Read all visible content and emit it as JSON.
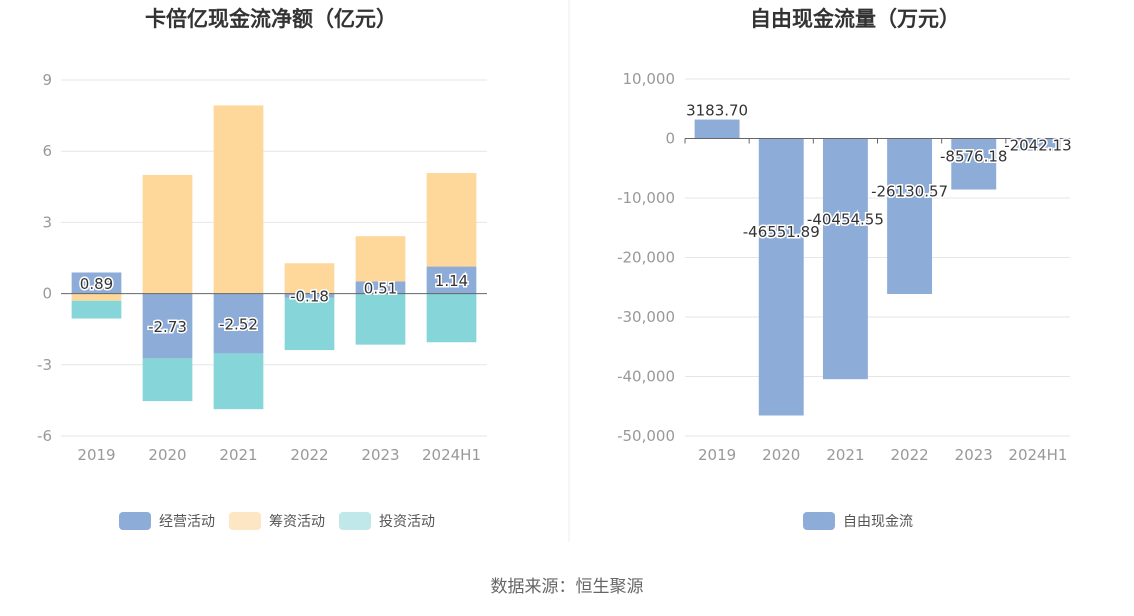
{
  "source_text": "数据来源：恒生聚源",
  "chart_data": [
    {
      "type": "bar",
      "stacked": true,
      "title": "卡倍亿现金流净额（亿元）",
      "categories": [
        "2019",
        "2020",
        "2021",
        "2022",
        "2023",
        "2024H1"
      ],
      "ylim": [
        -6,
        9
      ],
      "yticks": [
        9,
        6,
        3,
        0,
        -3,
        -6
      ],
      "ytick_labels": [
        "9",
        "6",
        "3",
        "0",
        "-3",
        "-6"
      ],
      "series": [
        {
          "name": "经营活动",
          "color": "#8eacd8",
          "values": [
            0.89,
            -2.73,
            -2.52,
            -0.18,
            0.51,
            1.14
          ],
          "labels": [
            "0.89",
            "-2.73",
            "-2.52",
            "-0.18",
            "0.51",
            "1.14"
          ]
        },
        {
          "name": "筹资活动",
          "color": "#fed89b",
          "values": [
            -0.3,
            5.0,
            7.93,
            1.28,
            1.91,
            3.94
          ]
        },
        {
          "name": "投资活动",
          "color": "#85d5d9",
          "values": [
            -0.75,
            -1.8,
            -2.35,
            -2.2,
            -2.15,
            -2.05
          ]
        }
      ],
      "legend": [
        {
          "name": "经营活动",
          "color": "#8eacd8"
        },
        {
          "name": "筹资活动",
          "color": "#fde6c4"
        },
        {
          "name": "投资活动",
          "color": "#c0e8ea"
        }
      ]
    },
    {
      "type": "bar",
      "title": "自由现金流量（万元）",
      "categories": [
        "2019",
        "2020",
        "2021",
        "2022",
        "2023",
        "2024H1"
      ],
      "ylim": [
        -50000,
        10000
      ],
      "yticks": [
        10000,
        0,
        -10000,
        -20000,
        -30000,
        -40000,
        -50000
      ],
      "ytick_labels": [
        "10,000",
        "0",
        "-10,000",
        "-20,000",
        "-30,000",
        "-40,000",
        "-50,000"
      ],
      "series": [
        {
          "name": "自由现金流",
          "color": "#8eacd8",
          "values": [
            3183.7,
            -46551.89,
            -40454.55,
            -26130.57,
            -8576.18,
            -2042.13
          ],
          "labels": [
            "3183.70",
            "-46551.89",
            "-40454.55",
            "-26130.57",
            "-8576.18",
            "-2042.13"
          ]
        }
      ],
      "legend": [
        {
          "name": "自由现金流",
          "color": "#8eacd8"
        }
      ]
    }
  ]
}
